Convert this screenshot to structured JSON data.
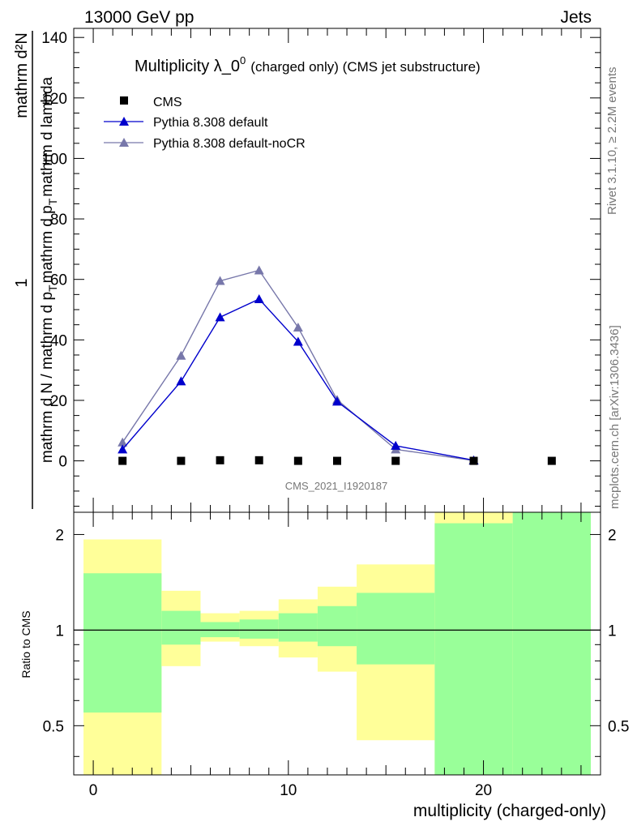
{
  "header": {
    "left": "13000 GeV pp",
    "right": "Jets"
  },
  "side": {
    "rivet": "Rivet 3.1.10, ≥ 2.2M events",
    "mcplots": "mcplots.cern.ch [arXiv:1306.3436]"
  },
  "colors": {
    "cms": "#000000",
    "pythia_default": "#0000cc",
    "pythia_nocr": "#7777aa",
    "band_green": "#99ff99",
    "band_yellow": "#ffff99"
  },
  "chart_data": [
    {
      "type": "line",
      "title_main": "Multiplicity λ_0",
      "title_sup": "0",
      "title_sub": "(charged only) (CMS jet substructure)",
      "watermark": "CMS_2021_I1920187",
      "ylabel_parts": [
        "1",
        "mathrm d N / mathrm d p",
        "T",
        "mathrm d p",
        "T",
        "mathrm d lambda",
        "mathrm d",
        "2",
        "N",
        "mathrm d N / mathrm d p",
        "T",
        "mathrm d p"
      ],
      "ylabel_top": "mathrm d²N",
      "ylabel_mid": "mathrm d p",
      "ylabel_bot": "mathrm d N / mathrm d p",
      "ylabel_tail": "mathrm d lambda",
      "ylim": [
        -17,
        143
      ],
      "xlim": [
        -1,
        26
      ],
      "yticks": [
        0,
        20,
        40,
        60,
        80,
        100,
        120,
        140
      ],
      "legend_placement": "top-left",
      "series": [
        {
          "name": "CMS",
          "x": [
            1.5,
            4.5,
            6.5,
            8.5,
            10.5,
            12.5,
            15.5,
            19.5,
            23.5
          ],
          "y": [
            0,
            0,
            0.2,
            0.2,
            0,
            0,
            0,
            0,
            0
          ]
        },
        {
          "name": "Pythia 8.308 default",
          "x": [
            1.5,
            4.5,
            6.5,
            8.5,
            10.5,
            12.5,
            15.5,
            19.5
          ],
          "y": [
            3.8,
            26.3,
            47.5,
            53.5,
            39.4,
            19.6,
            5.0,
            0.2
          ]
        },
        {
          "name": "Pythia 8.308 default-noCR",
          "x": [
            1.5,
            4.5,
            6.5,
            8.5,
            10.5,
            12.5,
            15.5,
            19.5
          ],
          "y": [
            6.1,
            34.8,
            59.5,
            63.0,
            44.1,
            20.2,
            3.8,
            0.1
          ]
        }
      ]
    },
    {
      "type": "area",
      "ylabel": "Ratio to CMS",
      "xlabel": "multiplicity (charged-only)",
      "xlim": [
        -1,
        26
      ],
      "ylog": true,
      "ylim": [
        0.35,
        2.35
      ],
      "xticks": [
        0,
        10,
        20
      ],
      "yticks": [
        "0.5",
        "1",
        "2"
      ],
      "bins": [
        {
          "x0": -0.5,
          "x1": 3.5,
          "green_lo": 0.55,
          "green_hi": 1.51,
          "yellow_lo": 0.35,
          "yellow_hi": 1.93
        },
        {
          "x0": 3.5,
          "x1": 5.5,
          "green_lo": 0.9,
          "green_hi": 1.15,
          "yellow_lo": 0.77,
          "yellow_hi": 1.33
        },
        {
          "x0": 5.5,
          "x1": 7.5,
          "green_lo": 0.95,
          "green_hi": 1.06,
          "yellow_lo": 0.92,
          "yellow_hi": 1.13
        },
        {
          "x0": 7.5,
          "x1": 9.5,
          "green_lo": 0.94,
          "green_hi": 1.08,
          "yellow_lo": 0.89,
          "yellow_hi": 1.15
        },
        {
          "x0": 9.5,
          "x1": 11.5,
          "green_lo": 0.92,
          "green_hi": 1.13,
          "yellow_lo": 0.82,
          "yellow_hi": 1.25
        },
        {
          "x0": 11.5,
          "x1": 13.5,
          "green_lo": 0.89,
          "green_hi": 1.19,
          "yellow_lo": 0.74,
          "yellow_hi": 1.37
        },
        {
          "x0": 13.5,
          "x1": 17.5,
          "green_lo": 0.78,
          "green_hi": 1.31,
          "yellow_lo": 0.45,
          "yellow_hi": 1.61
        },
        {
          "x0": 17.5,
          "x1": 21.5,
          "green_lo": 0.35,
          "green_hi": 2.17,
          "yellow_lo": 0.35,
          "yellow_hi": 2.35
        },
        {
          "x0": 21.5,
          "x1": 25.5,
          "green_lo": 0.35,
          "green_hi": 2.35,
          "yellow_lo": 0.35,
          "yellow_hi": 2.35
        }
      ]
    }
  ]
}
